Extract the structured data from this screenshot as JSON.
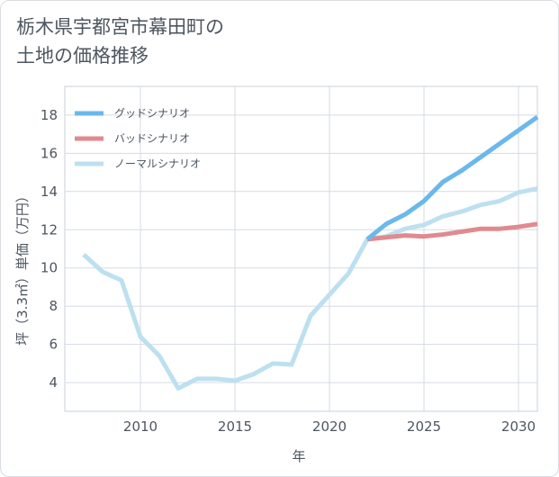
{
  "title": {
    "line1": "栃木県宇都宮市幕田町の",
    "line2": "土地の価格推移"
  },
  "colors": {
    "good": "#6bb8eb",
    "bad": "#e08a8f",
    "normal": "#bde0f0",
    "grid": "#d5dbe3",
    "text": "#4d5660"
  },
  "chart_data": {
    "type": "line",
    "title": "栃木県宇都宮市幕田町の土地の価格推移",
    "xlabel": "年",
    "ylabel": "坪（3.3㎡）単価（万円）",
    "xlim": [
      2006,
      2031
    ],
    "ylim": [
      2.5,
      19.5
    ],
    "x_ticks": [
      2010,
      2015,
      2020,
      2025,
      2030
    ],
    "y_ticks": [
      4,
      6,
      8,
      10,
      12,
      14,
      16,
      18
    ],
    "legend_position": "top-left",
    "series": [
      {
        "name": "グッドシナリオ",
        "key": "good",
        "points": [
          [
            2022,
            11.5
          ],
          [
            2023,
            12.3
          ],
          [
            2024,
            12.8
          ],
          [
            2025,
            13.5
          ],
          [
            2026,
            14.5
          ],
          [
            2027,
            15.1
          ],
          [
            2028,
            15.8
          ],
          [
            2029,
            16.5
          ],
          [
            2030,
            17.2
          ],
          [
            2031,
            17.9
          ]
        ]
      },
      {
        "name": "バッドシナリオ",
        "key": "bad",
        "points": [
          [
            2022,
            11.5
          ],
          [
            2023,
            11.6
          ],
          [
            2024,
            11.7
          ],
          [
            2025,
            11.65
          ],
          [
            2026,
            11.75
          ],
          [
            2027,
            11.9
          ],
          [
            2028,
            12.05
          ],
          [
            2029,
            12.05
          ],
          [
            2030,
            12.15
          ],
          [
            2031,
            12.3
          ]
        ]
      },
      {
        "name": "ノーマルシナリオ",
        "key": "normal",
        "points": [
          [
            2007,
            10.7
          ],
          [
            2008,
            9.8
          ],
          [
            2009,
            9.35
          ],
          [
            2010,
            6.4
          ],
          [
            2011,
            5.4
          ],
          [
            2012,
            3.7
          ],
          [
            2013,
            4.2
          ],
          [
            2014,
            4.2
          ],
          [
            2015,
            4.1
          ],
          [
            2016,
            4.45
          ],
          [
            2017,
            5.0
          ],
          [
            2018,
            4.95
          ],
          [
            2019,
            7.5
          ],
          [
            2020,
            8.6
          ],
          [
            2021,
            9.7
          ],
          [
            2022,
            11.5
          ],
          [
            2023,
            11.65
          ],
          [
            2024,
            12.05
          ],
          [
            2025,
            12.25
          ],
          [
            2026,
            12.7
          ],
          [
            2027,
            12.95
          ],
          [
            2028,
            13.3
          ],
          [
            2029,
            13.5
          ],
          [
            2030,
            13.95
          ],
          [
            2031,
            14.15
          ]
        ]
      }
    ]
  }
}
